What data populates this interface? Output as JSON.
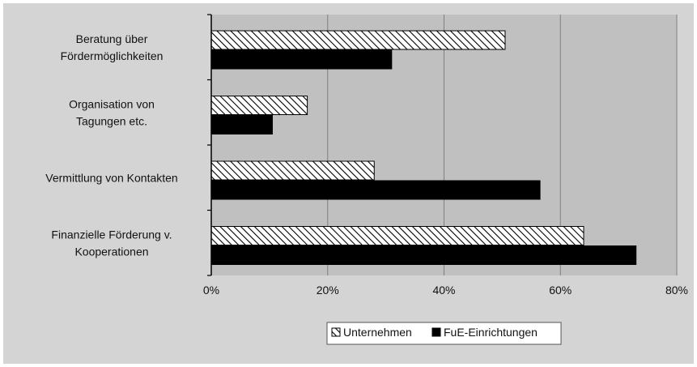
{
  "chart_data": {
    "type": "bar",
    "orientation": "horizontal",
    "categories": [
      [
        "Beratung über",
        "Fördermöglichkeiten"
      ],
      [
        "Organisation von",
        "Tagungen etc."
      ],
      [
        "Vermittlung von Kontakten"
      ],
      [
        "Finanzielle Förderung v.",
        "Kooperationen"
      ]
    ],
    "series": [
      {
        "name": "Unternehmen",
        "values": [
          50.5,
          16.5,
          28,
          64
        ],
        "fill": "hatched"
      },
      {
        "name": "FuE-Einrichtungen",
        "values": [
          31,
          10.5,
          56.5,
          73
        ],
        "fill": "solid"
      }
    ],
    "xlim": [
      0,
      80
    ],
    "xticks": [
      "0%",
      "20%",
      "40%",
      "60%",
      "80%"
    ],
    "grid": true,
    "legend_position": "bottom",
    "colors": {
      "background": "#ffffff",
      "plot_area": "#c0c0c0",
      "outer_area": "#d4d4d4",
      "bar_solid": "#000000",
      "hatch": "#000000",
      "gridline": "#7f7f7f"
    }
  }
}
